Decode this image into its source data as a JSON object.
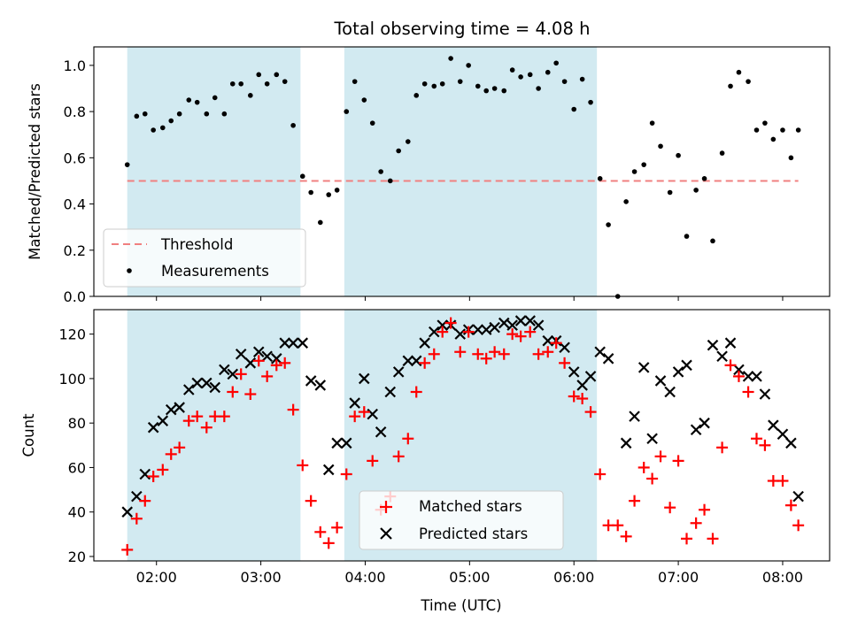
{
  "figure": {
    "title": "Total observing time = 4.08 h",
    "x_axis_label": "Time (UTC)",
    "top_y_label": "Matched/Predicted stars",
    "bottom_y_label": "Count"
  },
  "colors": {
    "shade": "#add8e6",
    "threshold": "#f08080",
    "measurement": "#000000",
    "matched": "#ff0000",
    "predicted": "#000000"
  },
  "chart_data": [
    {
      "type": "scatter",
      "xlabel": "",
      "ylabel": "Matched/Predicted stars",
      "title": "Total observing time = 4.08 h",
      "x_range_hours": [
        1.4,
        8.45
      ],
      "ylim": [
        0,
        1.08
      ],
      "x_ticks": [
        {
          "h": 2,
          "label": "02:00"
        },
        {
          "h": 3,
          "label": "03:00"
        },
        {
          "h": 4,
          "label": "04:00"
        },
        {
          "h": 5,
          "label": "05:00"
        },
        {
          "h": 6,
          "label": "06:00"
        },
        {
          "h": 7,
          "label": "07:00"
        },
        {
          "h": 8,
          "label": "08:00"
        }
      ],
      "y_ticks": [
        {
          "v": 0.0,
          "label": "0.0"
        },
        {
          "v": 0.2,
          "label": "0.2"
        },
        {
          "v": 0.4,
          "label": "0.4"
        },
        {
          "v": 0.6,
          "label": "0.6"
        },
        {
          "v": 0.8,
          "label": "0.8"
        },
        {
          "v": 1.0,
          "label": "1.0"
        }
      ],
      "shaded_spans_hours": [
        [
          1.72,
          3.38
        ],
        [
          3.8,
          6.22
        ]
      ],
      "legend_position": "lower left",
      "legend": [
        "Threshold",
        "Measurements"
      ],
      "threshold": {
        "name": "Threshold",
        "value": 0.5,
        "x_range_hours": [
          1.72,
          8.15
        ]
      },
      "series": [
        {
          "name": "Measurements",
          "marker": "dot",
          "x_hours": [
            1.72,
            1.81,
            1.89,
            1.97,
            2.06,
            2.14,
            2.22,
            2.31,
            2.39,
            2.48,
            2.56,
            2.65,
            2.73,
            2.81,
            2.9,
            2.98,
            3.06,
            3.15,
            3.23,
            3.31,
            3.4,
            3.48,
            3.57,
            3.65,
            3.73,
            3.82,
            3.9,
            3.99,
            4.07,
            4.15,
            4.24,
            4.32,
            4.41,
            4.49,
            4.57,
            4.66,
            4.74,
            4.82,
            4.91,
            4.99,
            5.08,
            5.16,
            5.24,
            5.33,
            5.41,
            5.49,
            5.58,
            5.66,
            5.75,
            5.83,
            5.91,
            6.0,
            6.08,
            6.16,
            6.25,
            6.33,
            6.42,
            6.5,
            6.58,
            6.67,
            6.75,
            6.83,
            6.92,
            7.0,
            7.08,
            7.17,
            7.25,
            7.33,
            7.42,
            7.5,
            7.58,
            7.67,
            7.75,
            7.83,
            7.91,
            8.0,
            8.08,
            8.15
          ],
          "y": [
            0.57,
            0.78,
            0.79,
            0.72,
            0.73,
            0.76,
            0.79,
            0.85,
            0.84,
            0.79,
            0.86,
            0.79,
            0.92,
            0.92,
            0.87,
            0.96,
            0.92,
            0.96,
            0.93,
            0.74,
            0.52,
            0.45,
            0.32,
            0.44,
            0.46,
            0.8,
            0.93,
            0.85,
            0.75,
            0.54,
            0.5,
            0.63,
            0.67,
            0.87,
            0.92,
            0.91,
            0.92,
            1.03,
            0.93,
            1.0,
            0.91,
            0.89,
            0.9,
            0.89,
            0.98,
            0.95,
            0.96,
            0.9,
            0.97,
            1.01,
            0.93,
            0.81,
            0.94,
            0.84,
            0.51,
            0.31,
            0.0,
            0.41,
            0.54,
            0.57,
            0.75,
            0.65,
            0.45,
            0.61,
            0.26,
            0.46,
            0.51,
            0.24,
            0.62,
            0.91,
            0.97,
            0.93,
            0.72,
            0.75,
            0.68,
            0.72,
            0.6,
            0.72
          ]
        }
      ]
    },
    {
      "type": "scatter",
      "xlabel": "Time (UTC)",
      "ylabel": "Count",
      "title": "",
      "x_range_hours": [
        1.4,
        8.45
      ],
      "ylim": [
        18,
        131
      ],
      "x_ticks": [
        {
          "h": 2,
          "label": "02:00"
        },
        {
          "h": 3,
          "label": "03:00"
        },
        {
          "h": 4,
          "label": "04:00"
        },
        {
          "h": 5,
          "label": "05:00"
        },
        {
          "h": 6,
          "label": "06:00"
        },
        {
          "h": 7,
          "label": "07:00"
        },
        {
          "h": 8,
          "label": "08:00"
        }
      ],
      "y_ticks": [
        {
          "v": 20,
          "label": "20"
        },
        {
          "v": 40,
          "label": "40"
        },
        {
          "v": 60,
          "label": "60"
        },
        {
          "v": 80,
          "label": "80"
        },
        {
          "v": 100,
          "label": "100"
        },
        {
          "v": 120,
          "label": "120"
        }
      ],
      "shaded_spans_hours": [
        [
          1.72,
          3.38
        ],
        [
          3.8,
          6.22
        ]
      ],
      "legend_position": "lower center",
      "legend": [
        "Matched stars",
        "Predicted stars"
      ],
      "series": [
        {
          "name": "Matched stars",
          "marker": "plus",
          "x_hours": [
            1.72,
            1.81,
            1.89,
            1.97,
            2.06,
            2.14,
            2.22,
            2.31,
            2.39,
            2.48,
            2.56,
            2.65,
            2.73,
            2.81,
            2.9,
            2.98,
            3.06,
            3.15,
            3.23,
            3.31,
            3.4,
            3.48,
            3.57,
            3.65,
            3.73,
            3.82,
            3.9,
            3.99,
            4.07,
            4.15,
            4.24,
            4.32,
            4.41,
            4.49,
            4.57,
            4.66,
            4.74,
            4.82,
            4.91,
            4.99,
            5.08,
            5.16,
            5.24,
            5.33,
            5.41,
            5.49,
            5.58,
            5.66,
            5.75,
            5.83,
            5.91,
            6.0,
            6.08,
            6.16,
            6.25,
            6.33,
            6.42,
            6.5,
            6.58,
            6.67,
            6.75,
            6.83,
            6.92,
            7.0,
            7.08,
            7.17,
            7.25,
            7.33,
            7.42,
            7.5,
            7.58,
            7.67,
            7.75,
            7.83,
            7.91,
            8.0,
            8.08,
            8.15
          ],
          "y": [
            23,
            37,
            45,
            56,
            59,
            66,
            69,
            81,
            83,
            78,
            83,
            83,
            94,
            102,
            93,
            108,
            101,
            106,
            107,
            86,
            61,
            45,
            31,
            26,
            33,
            57,
            83,
            85,
            63,
            41,
            47,
            65,
            73,
            94,
            107,
            111,
            121,
            125,
            112,
            121,
            111,
            109,
            112,
            111,
            120,
            119,
            121,
            111,
            112,
            116,
            107,
            92,
            91,
            85,
            57,
            34,
            34,
            29,
            45,
            60,
            55,
            65,
            42,
            63,
            28,
            35,
            41,
            28,
            69,
            106,
            101,
            94,
            73,
            70,
            54,
            54,
            43,
            34
          ]
        },
        {
          "name": "Predicted stars",
          "marker": "x",
          "x_hours": [
            1.72,
            1.81,
            1.89,
            1.97,
            2.06,
            2.14,
            2.22,
            2.31,
            2.39,
            2.48,
            2.56,
            2.65,
            2.73,
            2.81,
            2.9,
            2.98,
            3.06,
            3.15,
            3.23,
            3.31,
            3.4,
            3.48,
            3.57,
            3.65,
            3.73,
            3.82,
            3.9,
            3.99,
            4.07,
            4.15,
            4.24,
            4.32,
            4.41,
            4.49,
            4.57,
            4.66,
            4.74,
            4.82,
            4.91,
            4.99,
            5.08,
            5.16,
            5.24,
            5.33,
            5.41,
            5.49,
            5.58,
            5.66,
            5.75,
            5.83,
            5.91,
            6.0,
            6.08,
            6.16,
            6.25,
            6.33,
            6.42,
            6.5,
            6.58,
            6.67,
            6.75,
            6.83,
            6.92,
            7.0,
            7.08,
            7.17,
            7.25,
            7.33,
            7.42,
            7.5,
            7.58,
            7.67,
            7.75,
            7.83,
            7.91,
            8.0,
            8.08,
            8.15
          ],
          "y": [
            40,
            47,
            57,
            78,
            81,
            86,
            87,
            95,
            98,
            98,
            96,
            104,
            102,
            111,
            107,
            112,
            110,
            109,
            116,
            116,
            116,
            99,
            97,
            59,
            71,
            71,
            89,
            100,
            84,
            76,
            94,
            103,
            108,
            108,
            116,
            121,
            124,
            124,
            120,
            122,
            122,
            122,
            123,
            125,
            124,
            126,
            126,
            124,
            117,
            117,
            114,
            103,
            97,
            101,
            112,
            109,
            null,
            71,
            83,
            105,
            73,
            99,
            94,
            103,
            106,
            77,
            80,
            115,
            110,
            116,
            104,
            101,
            101,
            93,
            79,
            75,
            71,
            47
          ]
        }
      ]
    }
  ]
}
